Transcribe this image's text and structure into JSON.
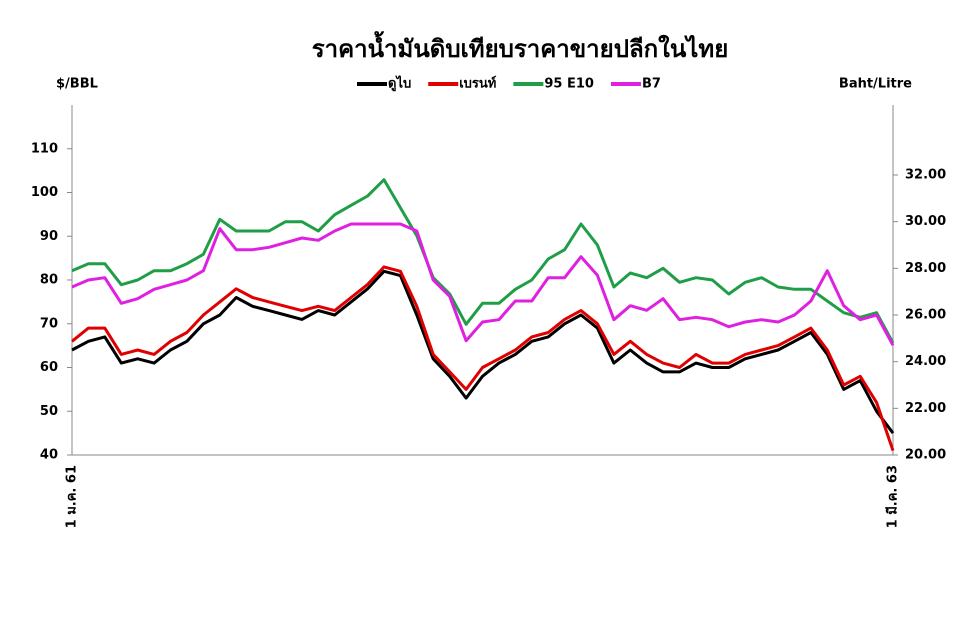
{
  "chart_data": {
    "type": "line",
    "title": "ราคาน้ำมันดิบเทียบราคาขายปลีกในไทย",
    "y_label": "$/BBL",
    "y2_label": "Baht/Litre",
    "categories": [
      "1 ม.ค. 61",
      null,
      null,
      null,
      null,
      null,
      null,
      null,
      null,
      null,
      null,
      null,
      null,
      null,
      null,
      null,
      null,
      null,
      null,
      null,
      null,
      null,
      null,
      null,
      null,
      null,
      null,
      null,
      null,
      null,
      null,
      null,
      null,
      null,
      null,
      null,
      null,
      null,
      null,
      null,
      null,
      null,
      null,
      null,
      null,
      null,
      null,
      null,
      null,
      null,
      "1 มี.ค. 63"
    ],
    "ylim": [
      40,
      120
    ],
    "yticks": [
      40,
      50,
      60,
      70,
      80,
      90,
      100,
      110
    ],
    "y2lim": [
      20,
      35
    ],
    "y2ticks": [
      {
        "value": 20,
        "label": "20.00"
      },
      {
        "value": 22,
        "label": "22.00"
      },
      {
        "value": 24,
        "label": "24.00"
      },
      {
        "value": 26,
        "label": "26.00"
      },
      {
        "value": 28,
        "label": "28.00"
      },
      {
        "value": 30,
        "label": "30.00"
      },
      {
        "value": 32,
        "label": "32.00"
      }
    ],
    "series": [
      {
        "name": "ดูไบ",
        "color": "#000000",
        "values": [
          64,
          66,
          67,
          61,
          62,
          61,
          64,
          66,
          70,
          72,
          76,
          74,
          73,
          72,
          71,
          73,
          72,
          75,
          78,
          82,
          81,
          72,
          62,
          58,
          53,
          58,
          61,
          63,
          66,
          67,
          70,
          72,
          69,
          61,
          64,
          61,
          59,
          59,
          61,
          60,
          60,
          62,
          63,
          64,
          66,
          68,
          63,
          55,
          57,
          50,
          45
        ]
      },
      {
        "name": "เบรนท์",
        "color": "#e00000",
        "values": [
          66,
          69,
          69,
          63,
          64,
          63,
          66,
          68,
          72,
          75,
          78,
          76,
          75,
          74,
          73,
          74,
          73,
          76,
          79,
          83,
          82,
          74,
          63,
          59,
          55,
          60,
          62,
          64,
          67,
          68,
          71,
          73,
          70,
          63,
          66,
          63,
          61,
          60,
          63,
          61,
          61,
          63,
          64,
          65,
          67,
          69,
          64,
          56,
          58,
          52,
          41
        ]
      },
      {
        "name": "95 E10",
        "color": "#1f9e47",
        "axis": "y2",
        "values": [
          27.9,
          28.2,
          28.2,
          27.3,
          27.5,
          27.9,
          27.9,
          28.2,
          28.6,
          30.1,
          29.6,
          29.6,
          29.6,
          30.0,
          30.0,
          29.6,
          30.3,
          30.7,
          31.1,
          31.8,
          30.6,
          29.4,
          27.6,
          26.9,
          25.6,
          26.5,
          26.5,
          27.1,
          27.5,
          28.4,
          28.8,
          29.9,
          29.0,
          27.2,
          27.8,
          27.6,
          28.0,
          27.4,
          27.6,
          27.5,
          26.9,
          27.4,
          27.6,
          27.2,
          27.1,
          27.1,
          26.6,
          26.1,
          25.9,
          26.1,
          24.8
        ]
      },
      {
        "name": "B7",
        "color": "#e020e0",
        "axis": "y2",
        "values": [
          27.2,
          27.5,
          27.6,
          26.5,
          26.7,
          27.1,
          27.3,
          27.5,
          27.9,
          29.7,
          28.8,
          28.8,
          28.9,
          29.1,
          29.3,
          29.2,
          29.6,
          29.9,
          29.9,
          29.9,
          29.9,
          29.6,
          27.5,
          26.8,
          24.9,
          25.7,
          25.8,
          26.6,
          26.6,
          27.6,
          27.6,
          28.5,
          27.7,
          25.8,
          26.4,
          26.2,
          26.7,
          25.8,
          25.9,
          25.8,
          25.5,
          25.7,
          25.8,
          25.7,
          26.0,
          26.6,
          27.9,
          26.4,
          25.8,
          26.0,
          24.7
        ]
      }
    ]
  }
}
